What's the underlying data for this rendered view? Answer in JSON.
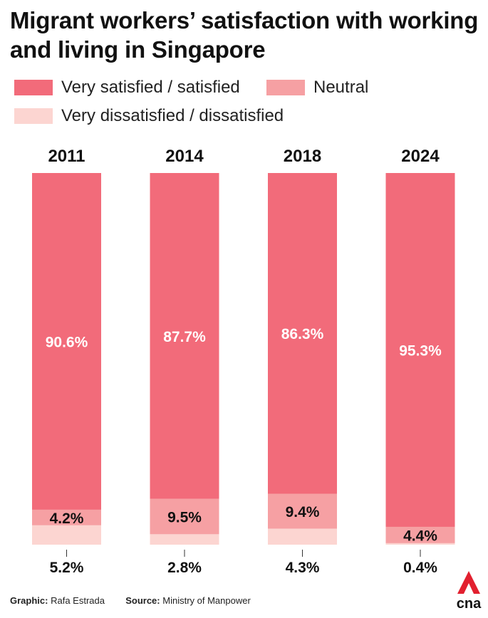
{
  "title": "Migrant workers’ satisfaction with working and living in Singapore",
  "colors": {
    "satisfied": "#f26b7a",
    "neutral": "#f6a0a3",
    "dissatisfied": "#fcd5d1",
    "brand": "#e2202f"
  },
  "legend": [
    {
      "label": "Very satisfied / satisfied",
      "color": "#f26b7a"
    },
    {
      "label": "Neutral",
      "color": "#f6a0a3"
    },
    {
      "label": "Very dissatisfied / dissatisfied",
      "color": "#fcd5d1"
    }
  ],
  "chart_data": {
    "type": "bar",
    "stacked": true,
    "categories": [
      "2011",
      "2014",
      "2018",
      "2024"
    ],
    "series": [
      {
        "name": "Very satisfied / satisfied",
        "values": [
          90.6,
          87.7,
          86.3,
          95.3
        ],
        "labels": [
          "90.6%",
          "87.7%",
          "86.3%",
          "95.3%"
        ]
      },
      {
        "name": "Neutral",
        "values": [
          4.2,
          9.5,
          9.4,
          4.4
        ],
        "labels": [
          "4.2%",
          "9.5%",
          "9.4%",
          "4.4%"
        ]
      },
      {
        "name": "Very dissatisfied / dissatisfied",
        "values": [
          5.2,
          2.8,
          4.3,
          0.4
        ],
        "labels": [
          "5.2%",
          "2.8%",
          "4.3%",
          "0.4%"
        ]
      }
    ],
    "ylim": [
      0,
      100
    ],
    "legend_position": "top",
    "grid": false
  },
  "footer": {
    "graphic_label": "Graphic:",
    "graphic_value": "Rafa Estrada",
    "source_label": "Source:",
    "source_value": "Ministry of Manpower"
  },
  "logo_text": "cna"
}
